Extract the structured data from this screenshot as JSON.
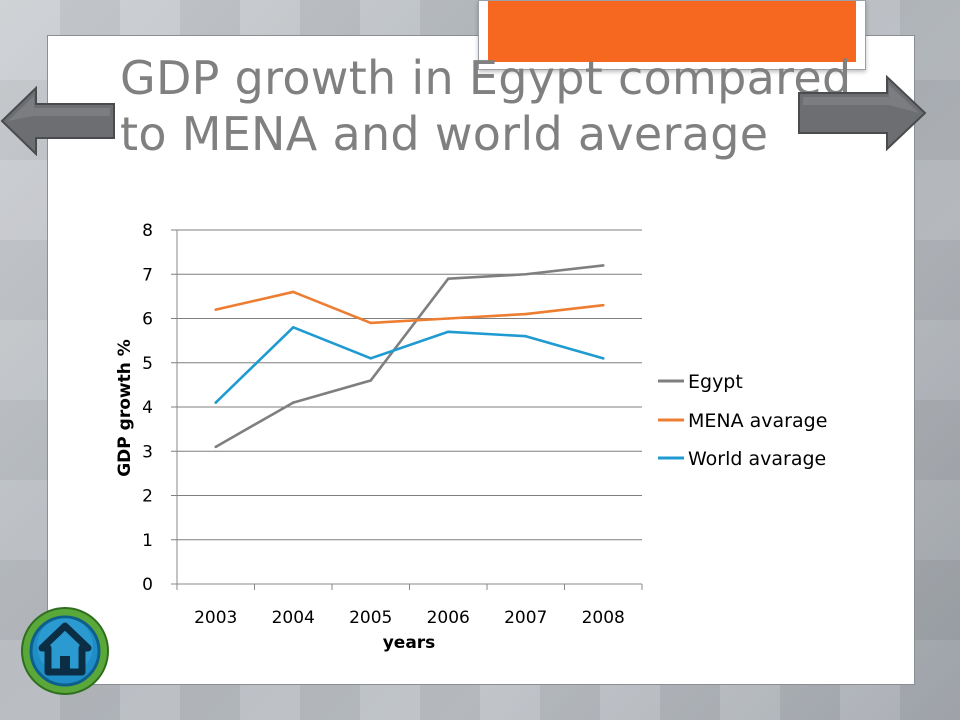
{
  "slide": {
    "title": "GDP growth in Egypt compared to MENA and world average"
  },
  "navigation": {
    "prev_icon": "arrow-left-icon",
    "next_icon": "arrow-right-icon",
    "home_icon": "home-icon"
  },
  "colors": {
    "accent": "#f6681f",
    "title": "#808080",
    "egypt": "#7f7f7f",
    "mena": "#ed7d31",
    "world": "#1f9bd1"
  },
  "chart_data": {
    "type": "line",
    "title": "",
    "xlabel": "years",
    "ylabel": "GDP growth %",
    "categories": [
      "2003",
      "2004",
      "2005",
      "2006",
      "2007",
      "2008"
    ],
    "ylim": [
      0,
      8
    ],
    "yticks": [
      "0",
      "1",
      "2",
      "3",
      "4",
      "5",
      "6",
      "7",
      "8"
    ],
    "grid": true,
    "legend": "right",
    "series": [
      {
        "name": "Egypt",
        "values": [
          3.1,
          4.1,
          4.6,
          6.9,
          7.0,
          7.2
        ],
        "color": "#7f7f7f"
      },
      {
        "name": "MENA avarage",
        "values": [
          6.2,
          6.6,
          5.9,
          6.0,
          6.1,
          6.3
        ],
        "color": "#ed7d31"
      },
      {
        "name": "World avarage",
        "values": [
          4.1,
          5.8,
          5.1,
          5.7,
          5.6,
          5.1
        ],
        "color": "#1f9bd1"
      }
    ]
  }
}
